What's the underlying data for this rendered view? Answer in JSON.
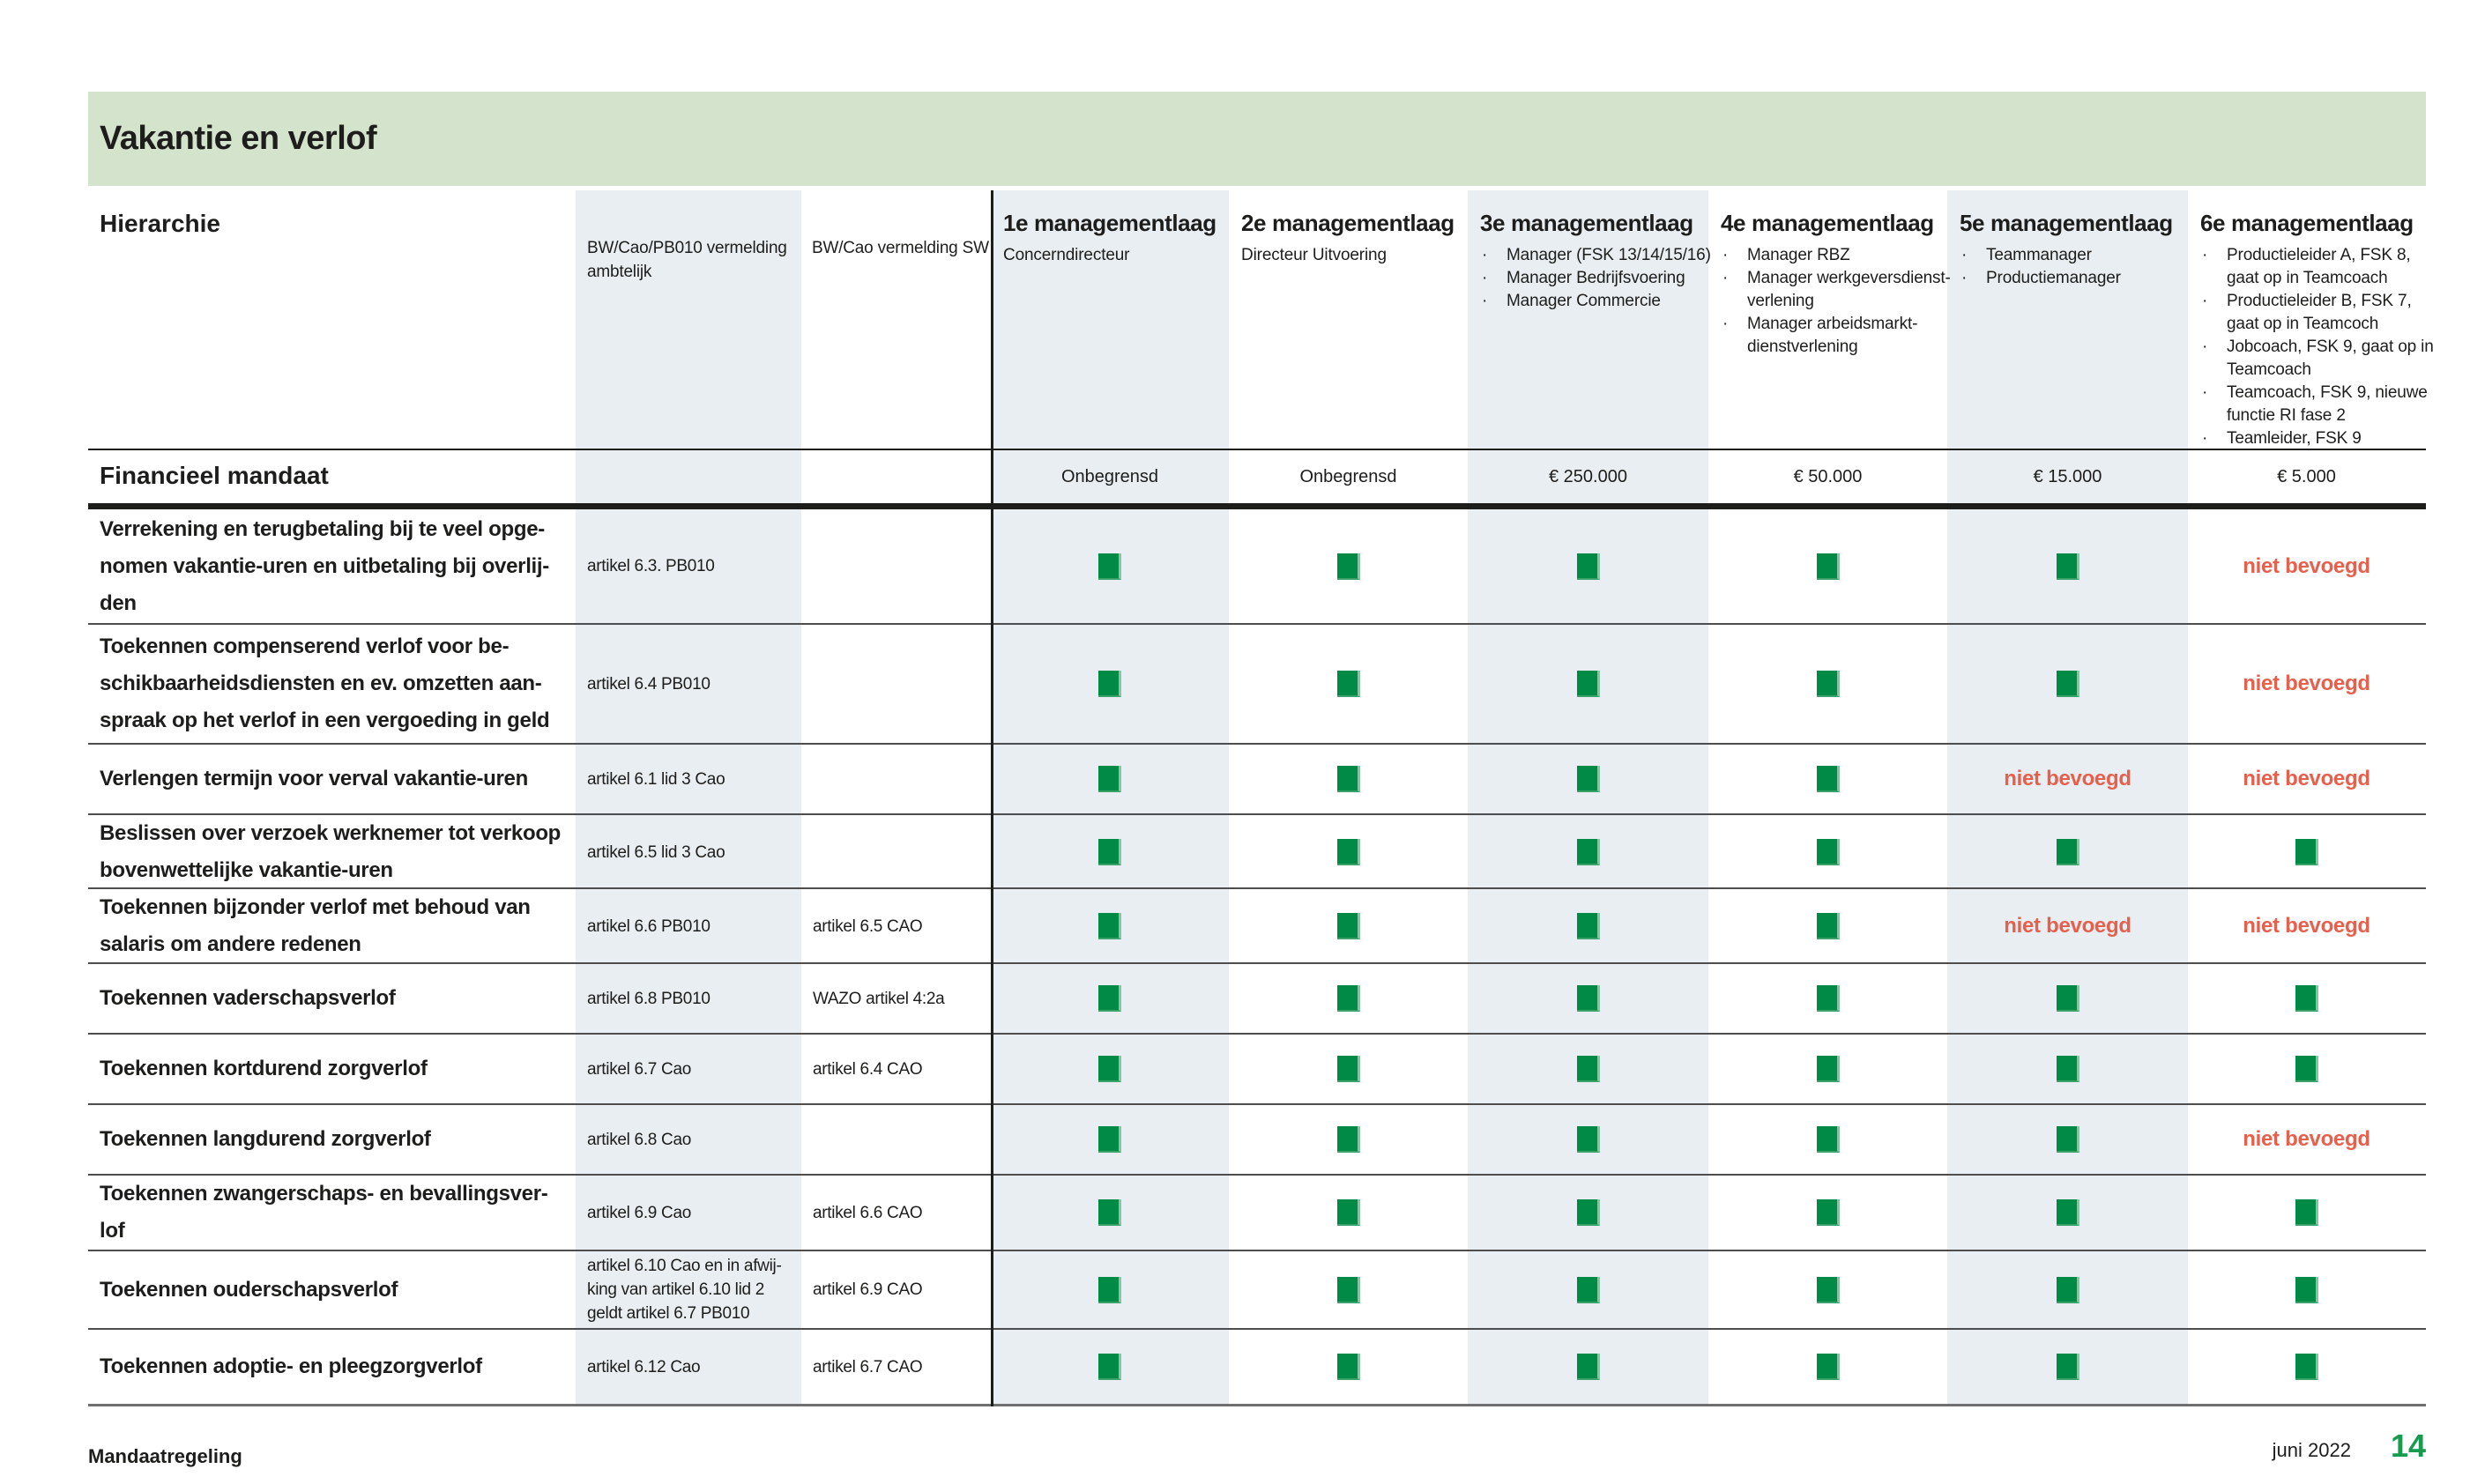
{
  "page": {
    "section_title": "Vakantie en verlof",
    "footer": {
      "document_title": "Mandaatregeling",
      "date": "juni 2022",
      "page_number": "14"
    }
  },
  "colors": {
    "banner_green": "#d3e3cc",
    "column_shade": "#e8eef1",
    "authorized_green": "#008a46",
    "not_authorized_red": "#e5604d",
    "page_number_green": "#169b4f",
    "text": "#1d1d1b"
  },
  "table": {
    "hierarchy_header": "Hierarchie",
    "financial_mandate_label": "Financieel mandaat",
    "legend": {
      "authorized_marker": "green-square",
      "not_authorized_label": "niet bevoegd"
    },
    "reference_columns": [
      {
        "label": "BW/Cao/PB010 vermelding\nambtelijk"
      },
      {
        "label": "BW/Cao vermelding SW"
      }
    ],
    "management_columns": [
      {
        "label": "1e managementlaag",
        "bulleted": false,
        "roles": [
          "Concerndirecteur"
        ],
        "financial_mandate": "Onbegrensd"
      },
      {
        "label": "2e managementlaag",
        "bulleted": false,
        "roles": [
          "Directeur Uitvoering"
        ],
        "financial_mandate": "Onbegrensd"
      },
      {
        "label": "3e managementlaag",
        "bulleted": true,
        "roles": [
          "Manager (FSK 13/14/15/16)",
          "Manager Bedrijfsvoering",
          "Manager Commercie"
        ],
        "financial_mandate": "€ 250.000"
      },
      {
        "label": "4e managementlaag",
        "bulleted": true,
        "roles": [
          "Manager RBZ",
          "Manager werkgeversdienst-\nverlening",
          "Manager arbeidsmarkt-\ndienstverlening"
        ],
        "financial_mandate": "€ 50.000"
      },
      {
        "label": "5e managementlaag",
        "bulleted": true,
        "roles": [
          "Teammanager",
          "Productiemanager"
        ],
        "financial_mandate": "€ 15.000"
      },
      {
        "label": "6e managementlaag",
        "bulleted": true,
        "roles": [
          "Productieleider A, FSK 8,\ngaat op in Teamcoach",
          "Productieleider B, FSK 7,\ngaat op in Teamcoch",
          "Jobcoach, FSK 9, gaat op in\nTeamcoach",
          "Teamcoach, FSK 9, nieuwe\nfunctie RI fase 2",
          "Teamleider, FSK 9"
        ],
        "financial_mandate": "€ 5.000"
      }
    ],
    "rows": [
      {
        "task": "Verrekening en terugbetaling bij te veel opge-\nnomen vakantie-uren en uitbetaling bij overlij-\nden",
        "ambtelijk_ref": "artikel 6.3. PB010",
        "sw_ref": "",
        "permissions": [
          "yes",
          "yes",
          "yes",
          "yes",
          "yes",
          "no"
        ]
      },
      {
        "task": "Toekennen compenserend verlof voor be-\nschikbaarheidsdiensten en ev. omzetten aan-\nspraak op het verlof in een vergoeding in geld",
        "ambtelijk_ref": "artikel 6.4 PB010",
        "sw_ref": "",
        "permissions": [
          "yes",
          "yes",
          "yes",
          "yes",
          "yes",
          "no"
        ]
      },
      {
        "task": "Verlengen termijn voor verval vakantie-uren",
        "ambtelijk_ref": "artikel 6.1 lid 3 Cao",
        "sw_ref": "",
        "permissions": [
          "yes",
          "yes",
          "yes",
          "yes",
          "no",
          "no"
        ]
      },
      {
        "task": "Beslissen over verzoek werknemer tot verkoop\nbovenwettelijke vakantie-uren",
        "ambtelijk_ref": "artikel 6.5 lid 3 Cao",
        "sw_ref": "",
        "permissions": [
          "yes",
          "yes",
          "yes",
          "yes",
          "yes",
          "yes"
        ]
      },
      {
        "task": "Toekennen bijzonder verlof met behoud van\nsalaris om andere redenen",
        "ambtelijk_ref": "artikel 6.6 PB010",
        "sw_ref": "artikel 6.5 CAO",
        "permissions": [
          "yes",
          "yes",
          "yes",
          "yes",
          "no",
          "no"
        ]
      },
      {
        "task": "Toekennen vaderschapsverlof",
        "ambtelijk_ref": "artikel 6.8 PB010",
        "sw_ref": "WAZO artikel 4:2a",
        "permissions": [
          "yes",
          "yes",
          "yes",
          "yes",
          "yes",
          "yes"
        ]
      },
      {
        "task": "Toekennen kortdurend zorgverlof",
        "ambtelijk_ref": "artikel 6.7 Cao",
        "sw_ref": "artikel 6.4 CAO",
        "permissions": [
          "yes",
          "yes",
          "yes",
          "yes",
          "yes",
          "yes"
        ]
      },
      {
        "task": "Toekennen langdurend zorgverlof",
        "ambtelijk_ref": "artikel 6.8 Cao",
        "sw_ref": "",
        "permissions": [
          "yes",
          "yes",
          "yes",
          "yes",
          "yes",
          "no"
        ]
      },
      {
        "task": "Toekennen zwangerschaps- en bevallingsver-\nlof",
        "ambtelijk_ref": "artikel 6.9 Cao",
        "sw_ref": "artikel 6.6 CAO",
        "permissions": [
          "yes",
          "yes",
          "yes",
          "yes",
          "yes",
          "yes"
        ]
      },
      {
        "task": "Toekennen ouderschapsverlof",
        "ambtelijk_ref": "artikel 6.10 Cao en in afwij-\nking van artikel 6.10 lid 2\ngeldt artikel 6.7 PB010",
        "sw_ref": "artikel 6.9 CAO",
        "permissions": [
          "yes",
          "yes",
          "yes",
          "yes",
          "yes",
          "yes"
        ]
      },
      {
        "task": "Toekennen adoptie- en pleegzorgverlof",
        "ambtelijk_ref": "artikel 6.12 Cao",
        "sw_ref": "artikel 6.7 CAO",
        "permissions": [
          "yes",
          "yes",
          "yes",
          "yes",
          "yes",
          "yes"
        ]
      }
    ]
  }
}
